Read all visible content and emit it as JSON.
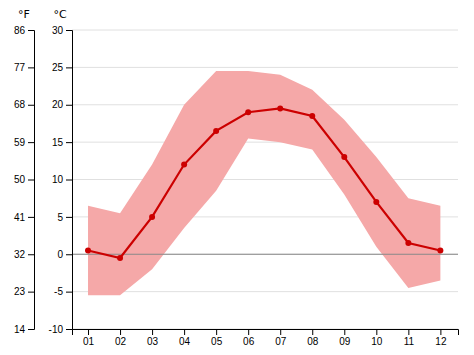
{
  "chart_data": {
    "type": "line",
    "ylabel": "°C",
    "y2label": "°F",
    "x": [
      1,
      2,
      3,
      4,
      5,
      6,
      7,
      8,
      9,
      10,
      11,
      12
    ],
    "xlim": [
      0.5,
      12.55
    ],
    "xticks": [
      {
        "value": 1,
        "label": "01"
      },
      {
        "value": 2,
        "label": "02"
      },
      {
        "value": 3,
        "label": "03"
      },
      {
        "value": 4,
        "label": "04"
      },
      {
        "value": 5,
        "label": "05"
      },
      {
        "value": 6,
        "label": "06"
      },
      {
        "value": 7,
        "label": "07"
      },
      {
        "value": 8,
        "label": "08"
      },
      {
        "value": 9,
        "label": "09"
      },
      {
        "value": 10,
        "label": "10"
      },
      {
        "value": 11,
        "label": "11"
      },
      {
        "value": 12,
        "label": "12"
      }
    ],
    "ylim": [
      -10,
      30
    ],
    "yticks": [
      -10,
      -5,
      0,
      5,
      10,
      15,
      20,
      25,
      30
    ],
    "y2lim": [
      14,
      86
    ],
    "y2ticks": [
      14,
      23,
      32,
      41,
      50,
      59,
      68,
      77,
      86
    ],
    "grid": "y",
    "hlines": [
      {
        "value": 0,
        "color": "#888888"
      }
    ],
    "series": [
      {
        "type": "band",
        "color": "#f5a8a8",
        "low": [
          -5.5,
          -5.5,
          -2.0,
          3.5,
          8.5,
          15.5,
          15.0,
          14.0,
          8.0,
          1.0,
          -4.5,
          -3.5
        ],
        "high": [
          6.5,
          5.5,
          12.0,
          20.0,
          24.5,
          24.5,
          24.0,
          22.0,
          18.0,
          13.0,
          7.5,
          6.5
        ]
      },
      {
        "type": "line",
        "color": "#cc0000",
        "marker": "circle",
        "values": [
          0.5,
          -0.5,
          5.0,
          12.0,
          16.5,
          19.0,
          19.5,
          18.5,
          13.0,
          7.0,
          1.5,
          0.5
        ]
      }
    ]
  }
}
